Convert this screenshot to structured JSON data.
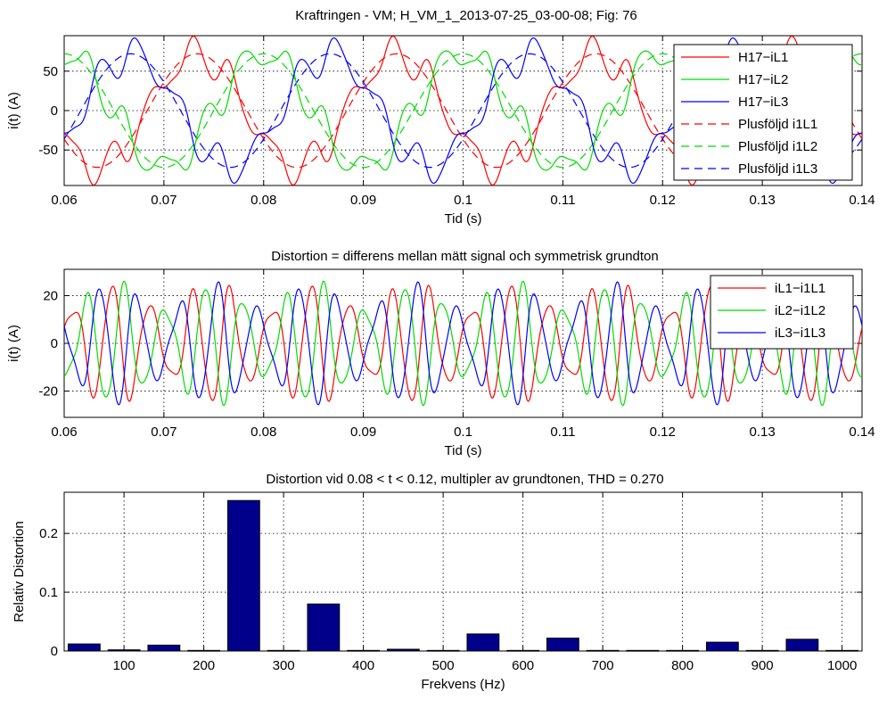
{
  "figure": {
    "suptitle": "Kraftringen - VM; H_VM_1_2013-07-25_03-00-08; Fig: 76"
  },
  "chart_data": [
    {
      "type": "line",
      "title": "",
      "xlabel": "Tid (s)",
      "ylabel": "i(t) (A)",
      "xlim": [
        0.06,
        0.14
      ],
      "ylim": [
        -95,
        95
      ],
      "xticks": [
        "0.06",
        "0.07",
        "0.08",
        "0.09",
        "0.1",
        "0.11",
        "0.12",
        "0.13",
        "0.14"
      ],
      "yticks": [
        "50",
        "0",
        "-50"
      ],
      "grid": true,
      "legend_position": "top-right",
      "series": [
        {
          "name": "H17−iL1",
          "color": "#ff0000",
          "style": "solid",
          "fundamental": {
            "amp": 72,
            "freq": 50,
            "phase_deg": -150
          },
          "harmonics": [
            {
              "order": 5,
              "amp": 19,
              "phase_deg": 20
            },
            {
              "order": 7,
              "amp": 6,
              "phase_deg": 200
            },
            {
              "order": 11,
              "amp": 2,
              "phase_deg": 90
            }
          ]
        },
        {
          "name": "H17−iL2",
          "color": "#00dd00",
          "style": "solid",
          "fundamental": {
            "amp": 72,
            "freq": 50,
            "phase_deg": 90
          },
          "harmonics": [
            {
              "order": 5,
              "amp": 19,
              "phase_deg": 260
            },
            {
              "order": 7,
              "amp": 6,
              "phase_deg": 80
            },
            {
              "order": 11,
              "amp": 2,
              "phase_deg": 330
            }
          ]
        },
        {
          "name": "H17−iL3",
          "color": "#0000ff",
          "style": "solid",
          "fundamental": {
            "amp": 72,
            "freq": 50,
            "phase_deg": -30
          },
          "harmonics": [
            {
              "order": 5,
              "amp": 19,
              "phase_deg": 140
            },
            {
              "order": 7,
              "amp": 6,
              "phase_deg": 320
            },
            {
              "order": 11,
              "amp": 2,
              "phase_deg": 210
            }
          ]
        },
        {
          "name": "Plusföljd i1L1",
          "color": "#ff0000",
          "style": "dashed",
          "fundamental": {
            "amp": 72,
            "freq": 50,
            "phase_deg": -150
          },
          "harmonics": []
        },
        {
          "name": "Plusföljd i1L2",
          "color": "#00dd00",
          "style": "dashed",
          "fundamental": {
            "amp": 72,
            "freq": 50,
            "phase_deg": 90
          },
          "harmonics": []
        },
        {
          "name": "Plusföljd i1L3",
          "color": "#0000ff",
          "style": "dashed",
          "fundamental": {
            "amp": 72,
            "freq": 50,
            "phase_deg": -30
          },
          "harmonics": []
        }
      ]
    },
    {
      "type": "line",
      "title": "Distortion = differens mellan mätt signal och symmetrisk grundton",
      "xlabel": "Tid (s)",
      "ylabel": "i(t) (A)",
      "xlim": [
        0.06,
        0.14
      ],
      "ylim": [
        -31,
        31
      ],
      "xticks": [
        "0.06",
        "0.07",
        "0.08",
        "0.09",
        "0.1",
        "0.11",
        "0.12",
        "0.13",
        "0.14"
      ],
      "yticks": [
        "20",
        "0",
        "-20"
      ],
      "grid": true,
      "legend_position": "top-right",
      "series": [
        {
          "name": "iL1−i1L1",
          "color": "#ff0000",
          "style": "solid",
          "fundamental": {
            "amp": 0,
            "freq": 50,
            "phase_deg": 0
          },
          "harmonics": [
            {
              "order": 5,
              "amp": 19,
              "phase_deg": 20
            },
            {
              "order": 7,
              "amp": 6,
              "phase_deg": 200
            },
            {
              "order": 11,
              "amp": 2,
              "phase_deg": 90
            }
          ]
        },
        {
          "name": "iL2−i1L2",
          "color": "#00dd00",
          "style": "solid",
          "fundamental": {
            "amp": 0,
            "freq": 50,
            "phase_deg": 0
          },
          "harmonics": [
            {
              "order": 5,
              "amp": 19,
              "phase_deg": 260
            },
            {
              "order": 7,
              "amp": 6,
              "phase_deg": 80
            },
            {
              "order": 11,
              "amp": 2,
              "phase_deg": 330
            }
          ]
        },
        {
          "name": "iL3−i1L3",
          "color": "#0000ff",
          "style": "solid",
          "fundamental": {
            "amp": 0,
            "freq": 50,
            "phase_deg": 0
          },
          "harmonics": [
            {
              "order": 5,
              "amp": 19,
              "phase_deg": 140
            },
            {
              "order": 7,
              "amp": 6,
              "phase_deg": 320
            },
            {
              "order": 11,
              "amp": 2,
              "phase_deg": 210
            }
          ]
        }
      ]
    },
    {
      "type": "bar",
      "title": "Distortion vid 0.08 < t < 0.12, multipler av grundtonen, THD = 0.270",
      "xlabel": "Frekvens (Hz)",
      "ylabel": "Relativ Distortion",
      "xlim": [
        25,
        1025
      ],
      "ylim": [
        0,
        0.27
      ],
      "xticks": [
        "100",
        "200",
        "300",
        "400",
        "500",
        "600",
        "700",
        "800",
        "900",
        "1000"
      ],
      "yticks": [
        "0",
        "0.1",
        "0.2"
      ],
      "grid": true,
      "bar_color": "#00008b",
      "x": [
        50,
        100,
        150,
        200,
        250,
        300,
        350,
        400,
        450,
        500,
        550,
        600,
        650,
        700,
        750,
        800,
        850,
        900,
        950,
        1000
      ],
      "values": [
        0.012,
        0.002,
        0.01,
        0.001,
        0.256,
        0.001,
        0.08,
        0.001,
        0.003,
        0.001,
        0.029,
        0.001,
        0.022,
        0.001,
        0.001,
        0.001,
        0.015,
        0.001,
        0.02,
        0.001
      ]
    }
  ]
}
